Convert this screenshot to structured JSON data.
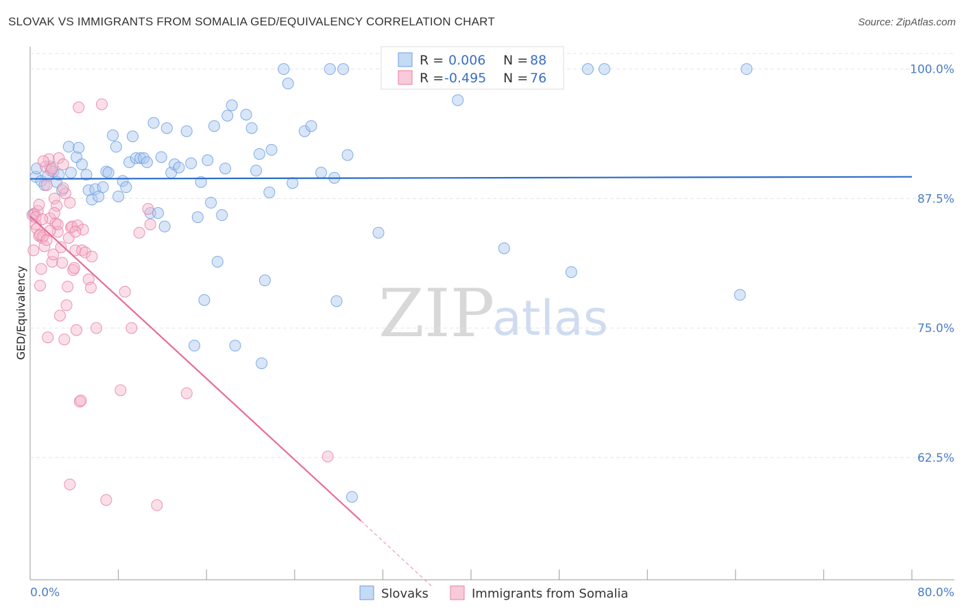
{
  "header": {
    "title": "SLOVAK VS IMMIGRANTS FROM SOMALIA GED/EQUIVALENCY CORRELATION CHART",
    "source": "Source: ZipAtlas.com"
  },
  "watermark": {
    "zip": "ZIP",
    "atlas": "atlas"
  },
  "legend_top": {
    "rows": [
      {
        "r_label": "R =",
        "r_value": "0.006",
        "n_label": "N =",
        "n_value": "88",
        "color": "#aac8f0"
      },
      {
        "r_label": "R =",
        "r_value": "-0.495",
        "n_label": "N =",
        "n_value": "76",
        "color": "#f7b8cc"
      }
    ]
  },
  "legend_bottom": {
    "items": [
      {
        "label": "Slovaks",
        "color": "#aac8f0"
      },
      {
        "label": "Immigrants from Somalia",
        "color": "#f7b8cc"
      }
    ]
  },
  "chart_data": {
    "type": "scatter",
    "title": "SLOVAK VS IMMIGRANTS FROM SOMALIA GED/EQUIVALENCY CORRELATION CHART",
    "ylabel": "GED/Equivalency",
    "xlabel": "",
    "xlim": [
      0,
      80
    ],
    "ylim": [
      50.7,
      101.5
    ],
    "x_tick_labels": [
      "0.0%",
      "80.0%"
    ],
    "y_ticks": [
      62.5,
      75.0,
      87.5,
      100.0
    ],
    "y_tick_labels": [
      "62.5%",
      "75.0%",
      "87.5%",
      "100.0%"
    ],
    "grid": true,
    "series": [
      {
        "name": "Slovaks",
        "color": "#6a9ee0",
        "fill": "#aac8f0",
        "trend": {
          "x": [
            0,
            80
          ],
          "y": [
            89.4,
            89.6
          ],
          "color": "#2a6bc8"
        },
        "points": [
          [
            0.5,
            89.6
          ],
          [
            0.6,
            90.4
          ],
          [
            1.0,
            89.2
          ],
          [
            1.3,
            88.8
          ],
          [
            1.6,
            89.7
          ],
          [
            1.8,
            90.6
          ],
          [
            2.1,
            90.1
          ],
          [
            2.4,
            89.1
          ],
          [
            2.6,
            89.8
          ],
          [
            2.9,
            88.3
          ],
          [
            3.5,
            92.5
          ],
          [
            3.7,
            90.0
          ],
          [
            4.2,
            91.5
          ],
          [
            4.4,
            92.4
          ],
          [
            4.7,
            90.8
          ],
          [
            5.1,
            89.8
          ],
          [
            5.3,
            88.3
          ],
          [
            5.6,
            87.4
          ],
          [
            5.9,
            88.4
          ],
          [
            6.2,
            87.7
          ],
          [
            6.6,
            88.6
          ],
          [
            6.9,
            90.1
          ],
          [
            7.1,
            90.0
          ],
          [
            7.5,
            93.6
          ],
          [
            7.8,
            92.5
          ],
          [
            8.0,
            87.7
          ],
          [
            8.4,
            89.2
          ],
          [
            8.7,
            88.6
          ],
          [
            9.0,
            91.0
          ],
          [
            9.3,
            93.5
          ],
          [
            9.6,
            91.4
          ],
          [
            10.0,
            91.4
          ],
          [
            10.3,
            91.4
          ],
          [
            10.6,
            91.0
          ],
          [
            10.9,
            86.1
          ],
          [
            11.2,
            94.8
          ],
          [
            11.6,
            86.1
          ],
          [
            11.9,
            91.5
          ],
          [
            12.2,
            84.8
          ],
          [
            12.4,
            94.3
          ],
          [
            12.8,
            90.0
          ],
          [
            13.1,
            90.8
          ],
          [
            13.5,
            90.5
          ],
          [
            14.2,
            94.0
          ],
          [
            14.6,
            90.9
          ],
          [
            14.9,
            73.3
          ],
          [
            15.2,
            85.7
          ],
          [
            15.5,
            89.1
          ],
          [
            15.8,
            77.7
          ],
          [
            16.1,
            91.2
          ],
          [
            16.4,
            87.1
          ],
          [
            16.7,
            94.5
          ],
          [
            17.0,
            81.4
          ],
          [
            17.4,
            85.9
          ],
          [
            17.7,
            90.4
          ],
          [
            17.9,
            95.5
          ],
          [
            18.3,
            96.5
          ],
          [
            18.6,
            73.3
          ],
          [
            19.6,
            95.6
          ],
          [
            20.1,
            94.3
          ],
          [
            20.5,
            90.2
          ],
          [
            20.8,
            91.8
          ],
          [
            21.0,
            71.6
          ],
          [
            21.3,
            79.6
          ],
          [
            21.7,
            88.1
          ],
          [
            21.9,
            92.2
          ],
          [
            23.0,
            100.0
          ],
          [
            23.4,
            98.6
          ],
          [
            23.8,
            89.0
          ],
          [
            24.9,
            94.0
          ],
          [
            25.5,
            94.5
          ],
          [
            26.4,
            90.0
          ],
          [
            27.2,
            100.0
          ],
          [
            27.6,
            89.5
          ],
          [
            27.8,
            77.6
          ],
          [
            28.4,
            100.0
          ],
          [
            28.8,
            91.7
          ],
          [
            29.2,
            58.7
          ],
          [
            31.6,
            84.2
          ],
          [
            38.0,
            100.0
          ],
          [
            38.8,
            97.0
          ],
          [
            43.0,
            82.7
          ],
          [
            49.1,
            80.4
          ],
          [
            50.6,
            100.0
          ],
          [
            52.1,
            100.0
          ],
          [
            64.4,
            78.2
          ],
          [
            65.0,
            100.0
          ],
          [
            0.3,
            86.0
          ]
        ]
      },
      {
        "name": "Immigrants from Somalia",
        "color": "#e87fa3",
        "fill": "#f7b8cc",
        "trend": {
          "x": [
            0,
            30.0
          ],
          "y": [
            85.8,
            56.4
          ],
          "color": "#e86a97",
          "dashed_to": [
            36.5,
            50.0
          ]
        },
        "points": [
          [
            0.2,
            85.9
          ],
          [
            0.3,
            82.5
          ],
          [
            0.4,
            86.0
          ],
          [
            0.5,
            85.0
          ],
          [
            0.6,
            84.6
          ],
          [
            0.7,
            86.3
          ],
          [
            0.8,
            83.9
          ],
          [
            0.9,
            79.1
          ],
          [
            1.0,
            80.7
          ],
          [
            1.1,
            83.7
          ],
          [
            1.2,
            83.9
          ],
          [
            1.3,
            82.9
          ],
          [
            1.4,
            90.6
          ],
          [
            1.5,
            88.8
          ],
          [
            1.6,
            74.1
          ],
          [
            1.7,
            91.3
          ],
          [
            1.8,
            85.6
          ],
          [
            1.9,
            90.2
          ],
          [
            2.0,
            81.4
          ],
          [
            2.1,
            82.1
          ],
          [
            2.2,
            87.5
          ],
          [
            2.3,
            85.1
          ],
          [
            2.4,
            86.8
          ],
          [
            2.5,
            84.3
          ],
          [
            2.6,
            91.4
          ],
          [
            2.7,
            76.2
          ],
          [
            2.8,
            82.8
          ],
          [
            2.9,
            81.3
          ],
          [
            3.0,
            90.8
          ],
          [
            3.1,
            73.9
          ],
          [
            3.2,
            88.0
          ],
          [
            3.3,
            77.2
          ],
          [
            3.4,
            79.0
          ],
          [
            3.5,
            83.7
          ],
          [
            3.6,
            87.1
          ],
          [
            3.7,
            84.7
          ],
          [
            3.8,
            84.8
          ],
          [
            3.9,
            80.6
          ],
          [
            4.0,
            80.8
          ],
          [
            4.1,
            82.5
          ],
          [
            4.2,
            74.8
          ],
          [
            4.3,
            84.9
          ],
          [
            4.4,
            96.3
          ],
          [
            4.5,
            67.9
          ],
          [
            4.6,
            68.0
          ],
          [
            4.7,
            82.5
          ],
          [
            4.8,
            84.5
          ],
          [
            5.0,
            82.3
          ],
          [
            5.3,
            79.7
          ],
          [
            5.6,
            81.9
          ],
          [
            6.0,
            75.0
          ],
          [
            6.5,
            96.6
          ],
          [
            6.9,
            58.4
          ],
          [
            8.2,
            69.0
          ],
          [
            8.6,
            78.5
          ],
          [
            9.2,
            75.0
          ],
          [
            9.9,
            84.2
          ],
          [
            10.7,
            86.5
          ],
          [
            10.9,
            85.0
          ],
          [
            11.5,
            57.9
          ],
          [
            14.2,
            68.7
          ],
          [
            27.0,
            62.6
          ],
          [
            3.6,
            59.9
          ],
          [
            1.2,
            91.1
          ],
          [
            2.0,
            90.4
          ],
          [
            0.9,
            84.0
          ],
          [
            1.5,
            83.5
          ],
          [
            0.5,
            85.7
          ],
          [
            3.0,
            88.5
          ],
          [
            2.5,
            85.0
          ],
          [
            1.8,
            84.4
          ],
          [
            0.8,
            86.9
          ],
          [
            1.1,
            85.5
          ],
          [
            4.1,
            84.3
          ],
          [
            5.5,
            78.9
          ],
          [
            2.2,
            86.1
          ]
        ]
      }
    ]
  }
}
